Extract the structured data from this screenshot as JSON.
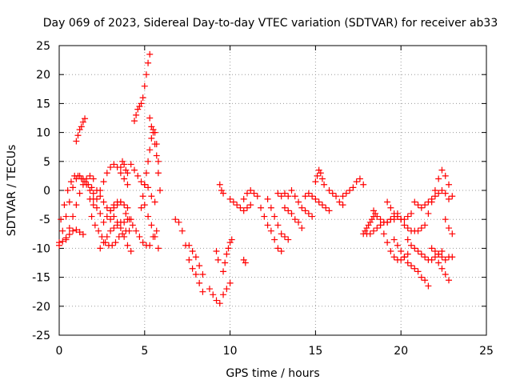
{
  "chart_data": {
    "type": "scatter",
    "title": "Day 069 of 2023, Sidereal Day-to-day VTEC variation (SDTVAR) for receiver ab33",
    "xlabel": "GPS time / hours",
    "ylabel": "SDTVAR / TECUs",
    "xlim": [
      0,
      25
    ],
    "ylim": [
      -25,
      25
    ],
    "xticks": [
      "0",
      "5",
      "10",
      "15",
      "20",
      "25"
    ],
    "yticks": [
      "25",
      "20",
      "15",
      "10",
      "5",
      "0",
      "-5",
      "-10",
      "-15",
      "-20",
      "-25"
    ],
    "grid": true,
    "marker": "+",
    "color": "#ff0000",
    "series": [
      {
        "name": "s1",
        "x": [
          0.0,
          0.2,
          0.4,
          0.6,
          0.8,
          1.0,
          1.2,
          1.4
        ],
        "y": [
          -9.5,
          -8.8,
          -8.2,
          -7.6,
          -7.0,
          -6.8,
          -7.2,
          -7.6
        ]
      },
      {
        "name": "s2",
        "x": [
          0.0,
          0.2,
          0.4,
          0.6,
          0.8,
          1.0,
          1.2,
          1.4,
          1.6,
          1.8,
          2.0,
          2.2,
          2.4
        ],
        "y": [
          -9.0,
          -7.0,
          -4.5,
          -2.0,
          0.5,
          2.0,
          2.5,
          2.0,
          1.0,
          0.0,
          -1.5,
          -3.0,
          -4.0
        ]
      },
      {
        "name": "s3",
        "x": [
          0.1,
          0.3,
          0.5,
          0.7,
          0.9,
          1.1,
          1.3,
          1.5,
          1.7,
          1.9
        ],
        "y": [
          -5.0,
          -2.5,
          0.0,
          1.5,
          2.5,
          2.5,
          2.0,
          1.5,
          1.0,
          0.5
        ]
      },
      {
        "name": "s4",
        "x": [
          0.4,
          0.6,
          0.8,
          1.0,
          1.2,
          1.4,
          1.6,
          1.8,
          2.0
        ],
        "y": [
          -8.5,
          -6.5,
          -4.5,
          -2.5,
          -0.5,
          1.0,
          2.0,
          2.5,
          2.0
        ]
      },
      {
        "name": "s5",
        "x": [
          1.0,
          1.1,
          1.2,
          1.3,
          1.4,
          1.5
        ],
        "y": [
          8.5,
          9.5,
          10.5,
          11.0,
          11.8,
          12.4
        ]
      },
      {
        "name": "s6",
        "x": [
          1.8,
          2.0,
          2.2,
          2.4,
          2.6,
          2.8,
          3.0,
          3.2,
          3.4,
          3.6
        ],
        "y": [
          -1.5,
          -0.5,
          0.0,
          -1.0,
          -2.0,
          -3.0,
          -3.5,
          -3.0,
          -2.5,
          -2.0
        ]
      },
      {
        "name": "s7",
        "x": [
          1.9,
          2.1,
          2.3,
          2.5,
          2.7,
          2.9,
          3.1,
          3.3,
          3.5,
          3.7,
          3.9,
          4.1
        ],
        "y": [
          -4.5,
          -6.0,
          -7.0,
          -8.0,
          -9.0,
          -9.5,
          -9.5,
          -9.0,
          -8.0,
          -7.5,
          -7.0,
          -7.0
        ]
      },
      {
        "name": "s8",
        "x": [
          2.0,
          2.2,
          2.4,
          2.6,
          2.8,
          3.0,
          3.2,
          3.4,
          3.6,
          3.8,
          4.0
        ],
        "y": [
          -2.5,
          -1.5,
          0.0,
          1.5,
          3.0,
          4.0,
          4.5,
          4.0,
          3.0,
          2.0,
          1.0
        ]
      },
      {
        "name": "s9",
        "x": [
          2.4,
          2.6,
          2.8,
          3.0,
          3.2,
          3.4,
          3.6,
          3.8,
          4.0,
          4.2
        ],
        "y": [
          -10.0,
          -9.0,
          -8.0,
          -7.0,
          -6.5,
          -6.0,
          -5.5,
          -5.5,
          -5.0,
          -5.0
        ]
      },
      {
        "name": "s10",
        "x": [
          2.6,
          2.8,
          3.0,
          3.2,
          3.4,
          3.6,
          3.8,
          4.0
        ],
        "y": [
          -5.5,
          -4.5,
          -3.5,
          -2.5,
          -2.0,
          -2.0,
          -2.5,
          -3.0
        ]
      },
      {
        "name": "s11",
        "x": [
          3.0,
          3.2,
          3.4,
          3.6,
          3.8,
          4.0,
          4.2
        ],
        "y": [
          -5.0,
          -4.5,
          -5.5,
          -6.5,
          -8.0,
          -9.5,
          -10.5
        ]
      },
      {
        "name": "s12",
        "x": [
          3.6,
          3.7,
          3.8,
          3.9,
          4.0
        ],
        "y": [
          4.0,
          5.0,
          4.5,
          3.5,
          3.0
        ]
      },
      {
        "name": "s13",
        "x": [
          3.9,
          4.1,
          4.3,
          4.5,
          4.7,
          4.9,
          5.1,
          5.3,
          5.5,
          5.7
        ],
        "y": [
          -4.0,
          -5.0,
          -6.0,
          -7.0,
          -8.0,
          -9.0,
          -9.5,
          -9.5,
          -8.0,
          -7.0
        ]
      },
      {
        "name": "s14",
        "x": [
          4.2,
          4.4,
          4.6,
          4.8,
          5.0,
          5.2,
          5.4,
          5.6
        ],
        "y": [
          4.5,
          3.5,
          2.5,
          1.5,
          1.0,
          0.5,
          -1.0,
          -2.0
        ]
      },
      {
        "name": "s15",
        "x": [
          4.4,
          4.5,
          4.6,
          4.7,
          4.8,
          4.9,
          5.0,
          5.1,
          5.2,
          5.3
        ],
        "y": [
          12.0,
          13.0,
          14.0,
          14.5,
          15.0,
          16.0,
          18.0,
          20.0,
          22.0,
          23.5
        ]
      },
      {
        "name": "s16",
        "x": [
          4.8,
          4.9,
          5.0,
          5.1,
          5.2,
          5.3,
          5.4,
          5.5,
          5.6,
          5.7,
          5.8,
          5.9
        ],
        "y": [
          -3.0,
          -1.0,
          1.0,
          3.0,
          5.0,
          7.0,
          9.0,
          10.5,
          10.0,
          8.0,
          5.0,
          0.0
        ]
      },
      {
        "name": "s17",
        "x": [
          5.0,
          5.2,
          5.4,
          5.6,
          5.8
        ],
        "y": [
          -2.5,
          -4.5,
          -6.0,
          -8.0,
          -10.0
        ]
      },
      {
        "name": "s18",
        "x": [
          5.3,
          5.4,
          5.5,
          5.6,
          5.7,
          5.8
        ],
        "y": [
          12.5,
          11.0,
          10.0,
          8.0,
          6.0,
          3.0
        ]
      },
      {
        "name": "s19",
        "x": [
          6.8,
          7.0,
          7.2,
          7.4,
          7.6,
          7.8,
          8.0,
          8.2,
          8.4
        ],
        "y": [
          -5.0,
          -5.5,
          -7.0,
          -9.5,
          -12.0,
          -13.5,
          -14.5,
          -16.0,
          -17.5
        ]
      },
      {
        "name": "s20",
        "x": [
          7.6,
          7.8,
          8.0,
          8.2,
          8.4
        ],
        "y": [
          -9.5,
          -10.5,
          -11.5,
          -13.0,
          -14.5
        ]
      },
      {
        "name": "s21",
        "x": [
          8.8,
          9.0,
          9.2,
          9.4,
          9.6,
          9.8,
          10.0
        ],
        "y": [
          -17.0,
          -18.0,
          -19.0,
          -19.5,
          -18.0,
          -17.0,
          -16.0
        ]
      },
      {
        "name": "s22",
        "x": [
          9.6,
          9.7,
          9.8,
          9.9,
          10.0,
          10.1
        ],
        "y": [
          -14.0,
          -12.5,
          -11.0,
          -10.0,
          -9.0,
          -8.5
        ]
      },
      {
        "name": "s23",
        "x": [
          9.4,
          9.5,
          9.6
        ],
        "y": [
          1.0,
          0.0,
          -0.5
        ]
      },
      {
        "name": "s24",
        "x": [
          9.2,
          9.3
        ],
        "y": [
          -10.5,
          -12.0
        ]
      },
      {
        "name": "s25",
        "x": [
          10.0,
          10.2,
          10.4,
          10.6,
          10.8,
          11.0,
          11.2
        ],
        "y": [
          -1.5,
          -2.0,
          -2.5,
          -3.0,
          -3.5,
          -3.0,
          -2.5
        ]
      },
      {
        "name": "s26",
        "x": [
          10.8,
          11.0,
          11.2,
          11.4,
          11.6
        ],
        "y": [
          -1.5,
          -0.5,
          0.0,
          -0.5,
          -1.0
        ]
      },
      {
        "name": "s27",
        "x": [
          10.8,
          10.9
        ],
        "y": [
          -12.0,
          -12.5
        ]
      },
      {
        "name": "s28",
        "x": [
          11.8,
          12.0,
          12.2,
          12.4,
          12.6,
          12.8,
          13.0
        ],
        "y": [
          -3.0,
          -4.5,
          -6.0,
          -7.0,
          -8.5,
          -10.0,
          -10.5
        ]
      },
      {
        "name": "s29",
        "x": [
          12.2,
          12.4,
          12.6,
          12.8,
          13.0,
          13.2,
          13.4
        ],
        "y": [
          -1.5,
          -3.0,
          -4.5,
          -6.0,
          -7.5,
          -8.0,
          -8.5
        ]
      },
      {
        "name": "s30",
        "x": [
          12.8,
          13.0,
          13.2,
          13.4
        ],
        "y": [
          -0.5,
          -1.0,
          -0.5,
          -1.0
        ]
      },
      {
        "name": "s31",
        "x": [
          13.2,
          13.4,
          13.6,
          13.8,
          14.0,
          14.2
        ],
        "y": [
          -3.0,
          -3.5,
          -4.0,
          -5.0,
          -5.5,
          -6.5
        ]
      },
      {
        "name": "s32",
        "x": [
          13.6,
          13.8,
          14.0,
          14.2,
          14.4,
          14.6,
          14.8
        ],
        "y": [
          0.0,
          -1.0,
          -2.0,
          -3.0,
          -3.5,
          -4.0,
          -4.5
        ]
      },
      {
        "name": "s33",
        "x": [
          14.4,
          14.6,
          14.8,
          15.0,
          15.2,
          15.4,
          15.6,
          15.8
        ],
        "y": [
          -1.0,
          -0.5,
          -1.0,
          -1.5,
          -2.0,
          -2.5,
          -3.0,
          -3.5
        ]
      },
      {
        "name": "s34",
        "x": [
          15.0,
          15.1,
          15.2,
          15.3,
          15.4,
          15.5
        ],
        "y": [
          1.5,
          2.5,
          3.5,
          3.0,
          2.0,
          1.0
        ]
      },
      {
        "name": "s35",
        "x": [
          15.8,
          16.0,
          16.2,
          16.4,
          16.6
        ],
        "y": [
          0.0,
          -0.5,
          -1.0,
          -2.0,
          -2.5
        ]
      },
      {
        "name": "s36",
        "x": [
          16.6,
          16.8,
          17.0,
          17.2,
          17.4,
          17.6,
          17.8
        ],
        "y": [
          -1.0,
          -0.5,
          0.0,
          0.5,
          1.5,
          2.0,
          1.0
        ]
      },
      {
        "name": "s37",
        "x": [
          17.8,
          17.9,
          18.0,
          18.1,
          18.2,
          18.3,
          18.4,
          18.5
        ],
        "y": [
          -7.5,
          -7.0,
          -6.5,
          -6.0,
          -5.5,
          -5.0,
          -4.5,
          -4.0
        ]
      },
      {
        "name": "s38",
        "x": [
          18.0,
          18.2,
          18.4,
          18.6,
          18.8,
          19.0,
          19.2,
          19.4,
          19.6
        ],
        "y": [
          -7.5,
          -7.5,
          -7.0,
          -6.5,
          -6.0,
          -5.5,
          -5.5,
          -5.0,
          -5.0
        ]
      },
      {
        "name": "s39",
        "x": [
          18.4,
          18.6,
          18.8,
          19.0,
          19.2,
          19.4,
          19.6,
          19.8
        ],
        "y": [
          -3.5,
          -4.5,
          -5.0,
          -5.5,
          -5.5,
          -5.0,
          -4.5,
          -4.5
        ]
      },
      {
        "name": "s40",
        "x": [
          18.8,
          19.0,
          19.2,
          19.4,
          19.6,
          19.8,
          20.0,
          20.2,
          20.4
        ],
        "y": [
          -6.0,
          -7.5,
          -9.0,
          -10.5,
          -11.5,
          -12.0,
          -12.0,
          -11.5,
          -11.0
        ]
      },
      {
        "name": "s41",
        "x": [
          19.2,
          19.4,
          19.6,
          19.8,
          20.0,
          20.2,
          20.4,
          20.6
        ],
        "y": [
          -2.0,
          -3.0,
          -4.0,
          -4.5,
          -5.0,
          -5.0,
          -4.5,
          -4.0
        ]
      },
      {
        "name": "s42",
        "x": [
          19.6,
          19.8,
          20.0,
          20.2,
          20.4,
          20.6,
          20.8,
          21.0,
          21.2,
          21.4,
          21.6
        ],
        "y": [
          -8.5,
          -9.5,
          -10.5,
          -11.5,
          -12.5,
          -13.0,
          -13.5,
          -14.0,
          -15.0,
          -15.5,
          -16.5
        ]
      },
      {
        "name": "s43",
        "x": [
          19.8,
          20.0,
          20.2,
          20.4,
          20.6,
          20.8,
          21.0,
          21.2,
          21.4,
          21.6,
          21.8,
          22.0,
          22.2,
          22.4,
          22.6,
          22.8,
          23.0
        ],
        "y": [
          -4.0,
          -5.0,
          -6.0,
          -6.5,
          -7.0,
          -7.0,
          -7.0,
          -6.5,
          -6.0,
          -4.0,
          -2.0,
          0.0,
          2.0,
          3.5,
          2.5,
          1.0,
          -1.0
        ]
      },
      {
        "name": "s44",
        "x": [
          20.4,
          20.6,
          20.8,
          21.0,
          21.2,
          21.4,
          21.6,
          21.8,
          22.0,
          22.2,
          22.4
        ],
        "y": [
          -8.5,
          -9.5,
          -10.0,
          -10.5,
          -11.0,
          -11.5,
          -12.0,
          -12.0,
          -11.5,
          -11.0,
          -10.5
        ]
      },
      {
        "name": "s45",
        "x": [
          20.8,
          21.0,
          21.2,
          21.4,
          21.6,
          21.8,
          22.0,
          22.2,
          22.4,
          22.6,
          22.8
        ],
        "y": [
          -2.0,
          -2.5,
          -3.0,
          -2.5,
          -2.0,
          -1.5,
          -1.0,
          -0.5,
          0.0,
          -0.5,
          -1.5
        ]
      },
      {
        "name": "s46",
        "x": [
          21.8,
          22.0,
          22.2,
          22.4,
          22.6,
          22.8,
          23.0
        ],
        "y": [
          -10.0,
          -10.5,
          -11.0,
          -11.5,
          -12.0,
          -11.5,
          -11.5
        ]
      },
      {
        "name": "s47",
        "x": [
          22.2,
          22.4,
          22.6,
          22.8
        ],
        "y": [
          -12.5,
          -13.5,
          -14.5,
          -15.5
        ]
      },
      {
        "name": "s48",
        "x": [
          22.6,
          22.8,
          23.0
        ],
        "y": [
          -5.0,
          -6.5,
          -7.5
        ]
      }
    ]
  }
}
